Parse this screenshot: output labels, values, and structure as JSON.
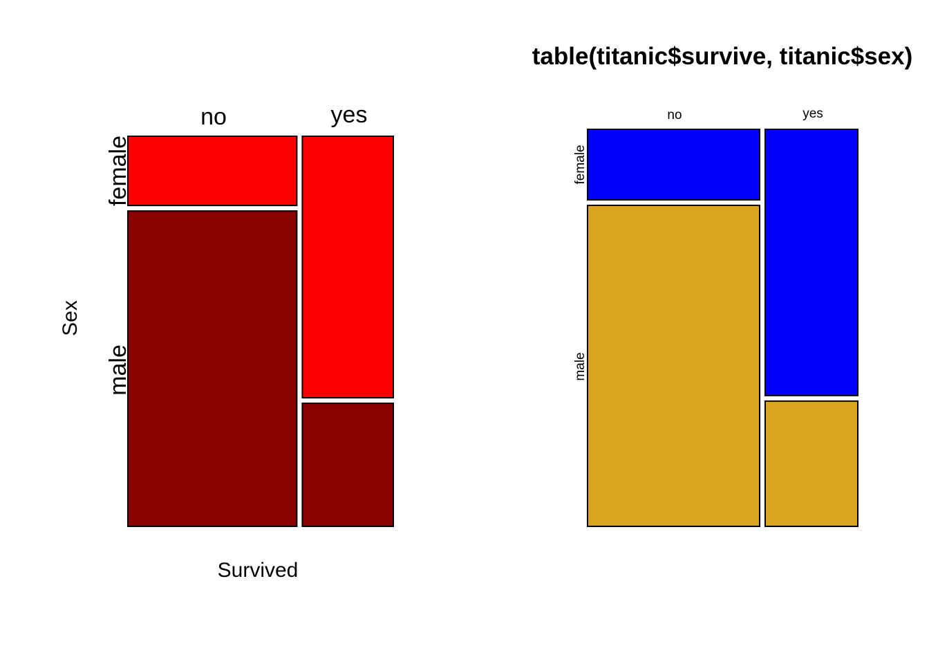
{
  "chart_data": [
    {
      "type": "mosaic",
      "title": "",
      "xlabel": "Survived",
      "ylabel": "Sex",
      "x_categories": [
        "no",
        "yes"
      ],
      "y_categories": [
        "female",
        "male"
      ],
      "column_proportions": {
        "no": 0.65,
        "yes": 0.35
      },
      "cell_proportions_within_column": {
        "no": {
          "female": 0.18,
          "male": 0.82
        },
        "yes": {
          "female": 0.68,
          "male": 0.32
        }
      },
      "colors": {
        "female": "#FF0000",
        "male": "#8B0000"
      }
    },
    {
      "type": "mosaic",
      "title": "table(titanic$survive, titanic$sex)",
      "xlabel": "",
      "ylabel": "",
      "x_categories": [
        "no",
        "yes"
      ],
      "y_categories": [
        "female",
        "male"
      ],
      "column_proportions": {
        "no": 0.65,
        "yes": 0.35
      },
      "cell_proportions_within_column": {
        "no": {
          "female": 0.18,
          "male": 0.82
        },
        "yes": {
          "female": 0.68,
          "male": 0.32
        }
      },
      "colors": {
        "female": "#0000FF",
        "male": "#DAA520"
      }
    }
  ]
}
